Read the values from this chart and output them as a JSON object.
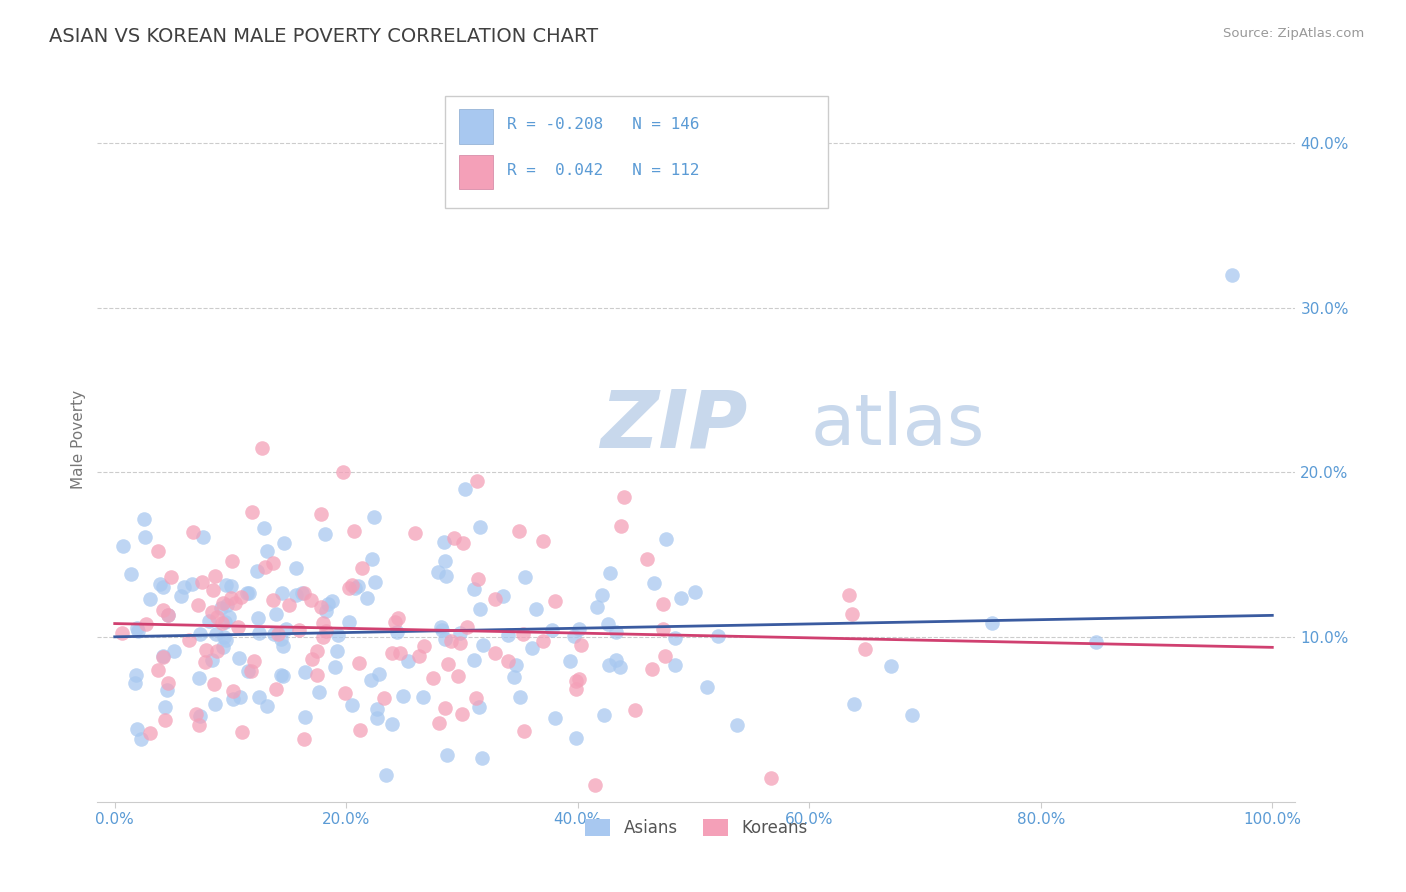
{
  "title": "ASIAN VS KOREAN MALE POVERTY CORRELATION CHART",
  "source": "Source: ZipAtlas.com",
  "ylabel": "Male Poverty",
  "legend_r": [
    -0.208,
    0.042
  ],
  "legend_n": [
    146,
    112
  ],
  "asian_color": "#A8C8F0",
  "korean_color": "#F4A0B8",
  "asian_line_color": "#3A5BA0",
  "korean_line_color": "#D04070",
  "title_color": "#404040",
  "axis_label_color": "#5B9BD5",
  "tick_color": "#5B9BD5",
  "background_color": "#FFFFFF",
  "grid_color": "#CCCCCC",
  "watermark_zip": "ZIP",
  "watermark_atlas": "atlas",
  "xlim": [
    0.0,
    1.0
  ],
  "ylim": [
    0.0,
    0.44
  ],
  "yticks": [
    0.1,
    0.2,
    0.3,
    0.4
  ],
  "xticks": [
    0.0,
    0.2,
    0.4,
    0.6,
    0.8,
    1.0
  ]
}
